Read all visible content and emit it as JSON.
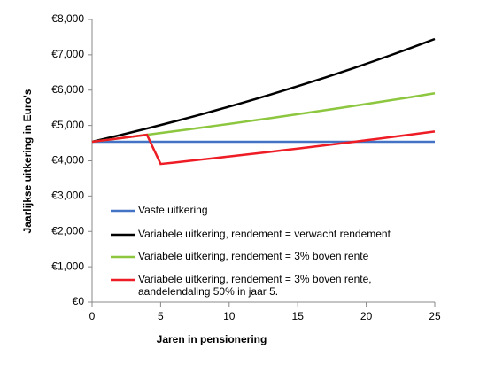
{
  "chart_data": {
    "type": "line",
    "x_label": "Jaren in pensionering",
    "y_label": "Jaarlijkse uitkering in Euro's",
    "x": [
      0,
      1,
      2,
      3,
      4,
      5,
      6,
      7,
      8,
      9,
      10,
      11,
      12,
      13,
      14,
      15,
      16,
      17,
      18,
      19,
      20,
      21,
      22,
      23,
      24,
      25
    ],
    "xlim": [
      0,
      25
    ],
    "xticks": [
      0,
      5,
      10,
      15,
      20,
      25
    ],
    "ylim": [
      0,
      8000
    ],
    "yticks": [
      {
        "value": 0,
        "label": "€0"
      },
      {
        "value": 1000,
        "label": "€1,000"
      },
      {
        "value": 2000,
        "label": "€2,000"
      },
      {
        "value": 3000,
        "label": "€3,000"
      },
      {
        "value": 4000,
        "label": "€4,000"
      },
      {
        "value": 5000,
        "label": "€5,000"
      },
      {
        "value": 6000,
        "label": "€6,000"
      },
      {
        "value": 7000,
        "label": "€7,000"
      },
      {
        "value": 8000,
        "label": "€8,000"
      }
    ],
    "grid": false,
    "legend": "lower left",
    "series": [
      {
        "name": "Vaste uitkering",
        "color": "#4472c4",
        "values": [
          4540,
          4540,
          4540,
          4540,
          4540,
          4540,
          4540,
          4540,
          4540,
          4540,
          4540,
          4540,
          4540,
          4540,
          4540,
          4540,
          4540,
          4540,
          4540,
          4540,
          4540,
          4540,
          4540,
          4540,
          4540,
          4540
        ]
      },
      {
        "name": "Variabele uitkering, rendement = verwacht rendement",
        "color": "#000000",
        "values": [
          4540,
          4631,
          4723,
          4818,
          4914,
          5013,
          5113,
          5215,
          5319,
          5426,
          5534,
          5645,
          5758,
          5873,
          5991,
          6110,
          6233,
          6357,
          6484,
          6614,
          6746,
          6881,
          7019,
          7159,
          7302,
          7448
        ]
      },
      {
        "name": "Variabele uitkering, rendement = 3% boven rente",
        "color": "#8dc63f",
        "values": [
          4540,
          4588,
          4637,
          4686,
          4736,
          4786,
          4837,
          4888,
          4940,
          4992,
          5045,
          5099,
          5153,
          5208,
          5263,
          5319,
          5375,
          5432,
          5490,
          5548,
          5607,
          5667,
          5727,
          5788,
          5850,
          5912
        ]
      },
      {
        "name": "Variabele uitkering, rendement = 3% boven rente, aandelendaling 50% in jaar 5.",
        "color": "#ee1c25",
        "values": [
          4540,
          4588,
          4637,
          4686,
          4736,
          3910,
          3951,
          3993,
          4036,
          4079,
          4122,
          4166,
          4210,
          4255,
          4300,
          4346,
          4392,
          4439,
          4486,
          4534,
          4582,
          4631,
          4680,
          4730,
          4780,
          4831
        ]
      }
    ]
  }
}
